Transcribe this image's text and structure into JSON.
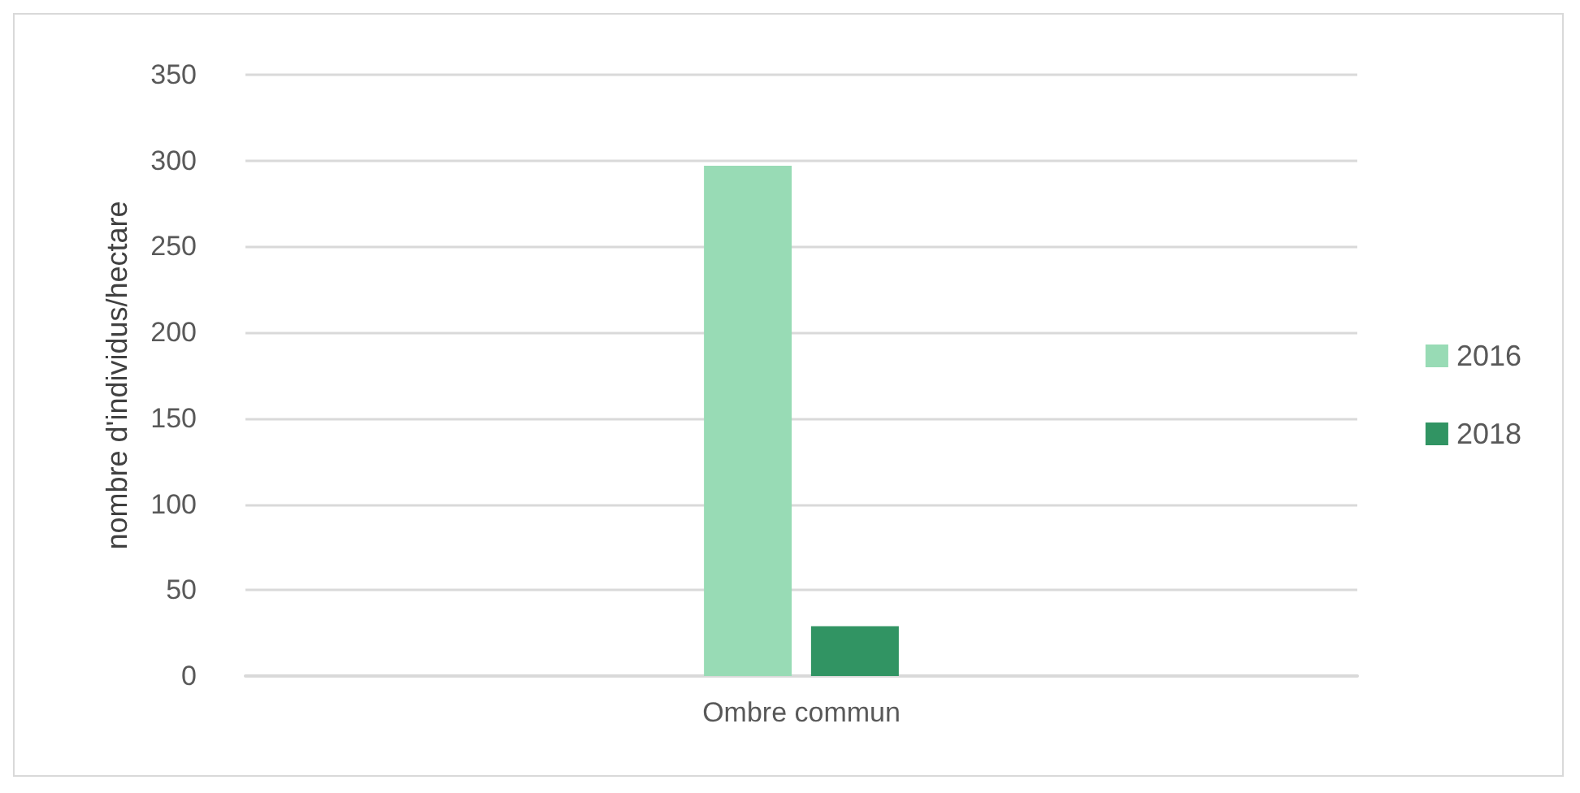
{
  "chart_data": {
    "type": "bar",
    "ylabel": "nombre d'individus/hectare",
    "categories": [
      "Ombre commun"
    ],
    "series": [
      {
        "name": "2016",
        "color": "#98dbb5",
        "values": [
          297
        ]
      },
      {
        "name": "2018",
        "color": "#319463",
        "values": [
          29
        ]
      }
    ],
    "ylim": [
      0,
      350
    ],
    "yticks": [
      0,
      50,
      100,
      150,
      200,
      250,
      300,
      350
    ],
    "grid": "y",
    "legend": "right"
  }
}
